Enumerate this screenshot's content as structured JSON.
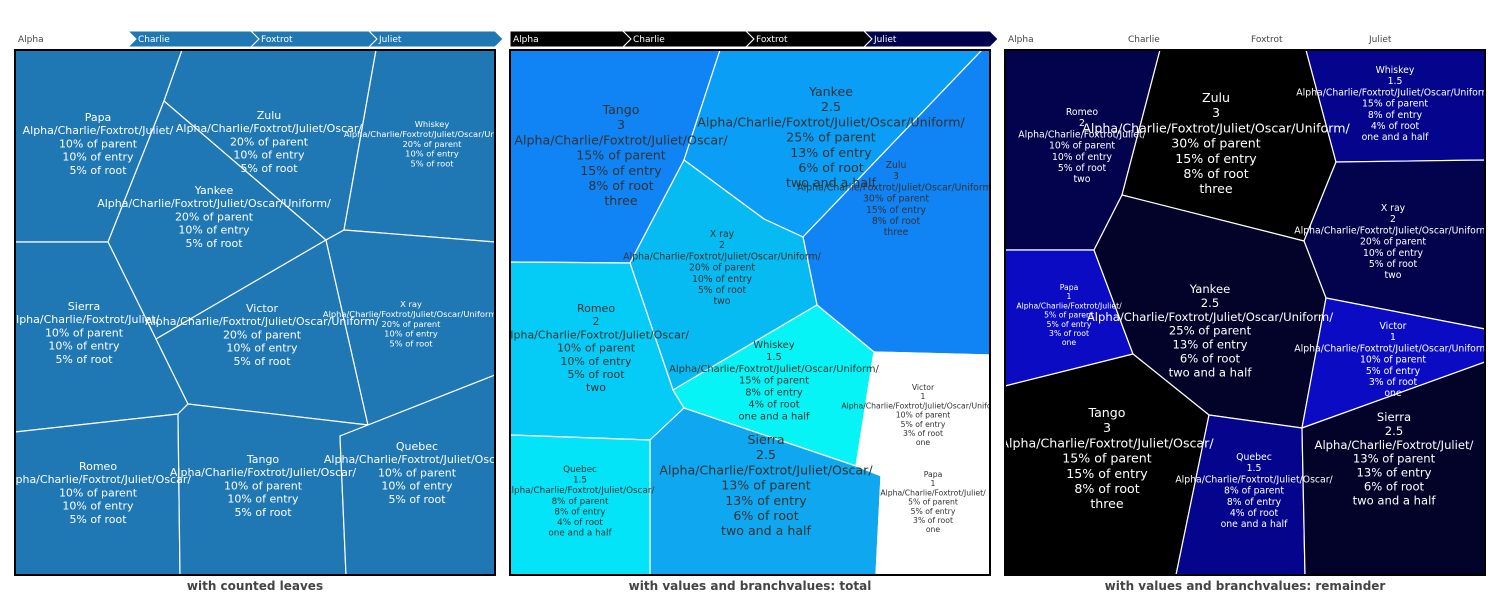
{
  "chart_data": [
    {
      "type": "voronoi-treemap",
      "title": "with counted leaves",
      "pathbar": [
        "Alpha",
        "Charlie",
        "Foxtrot",
        "Juliet"
      ],
      "cells": [
        {
          "label": "Papa",
          "path": "Alpha/Charlie/Foxtrot/Juliet/",
          "lines": [
            "10% of parent",
            "10% of entry",
            "5% of root"
          ]
        },
        {
          "label": "Zulu",
          "path": "Alpha/Charlie/Foxtrot/Juliet/Oscar/",
          "lines": [
            "20% of parent",
            "10% of entry",
            "5% of root"
          ]
        },
        {
          "label": "Whiskey",
          "path": "Alpha/Charlie/Foxtrot/Juliet/Oscar/Uniform/",
          "lines": [
            "20% of parent",
            "10% of entry",
            "5% of root"
          ]
        },
        {
          "label": "Yankee",
          "path": "Alpha/Charlie/Foxtrot/Juliet/Oscar/Uniform/",
          "lines": [
            "20% of parent",
            "10% of entry",
            "5% of root"
          ]
        },
        {
          "label": "Sierra",
          "path": "Alpha/Charlie/Foxtrot/Juliet/",
          "lines": [
            "10% of parent",
            "10% of entry",
            "5% of root"
          ]
        },
        {
          "label": "Victor",
          "path": "Alpha/Charlie/Foxtrot/Juliet/Oscar/Uniform/",
          "lines": [
            "20% of parent",
            "10% of entry",
            "5% of root"
          ]
        },
        {
          "label": "X ray",
          "path": "Alpha/Charlie/Foxtrot/Juliet/Oscar/Uniform/",
          "lines": [
            "20% of parent",
            "10% of entry",
            "5% of root"
          ]
        },
        {
          "label": "Romeo",
          "path": "Alpha/Charlie/Foxtrot/Juliet/Oscar/",
          "lines": [
            "10% of parent",
            "10% of entry",
            "5% of root"
          ]
        },
        {
          "label": "Tango",
          "path": "Alpha/Charlie/Foxtrot/Juliet/Oscar/",
          "lines": [
            "10% of parent",
            "10% of entry",
            "5% of root"
          ]
        },
        {
          "label": "Quebec",
          "path": "Alpha/Charlie/Foxtrot/Juliet/Oscar/",
          "lines": [
            "10% of parent",
            "10% of entry",
            "5% of root"
          ]
        }
      ]
    },
    {
      "type": "voronoi-treemap",
      "title": "with values and branchvalues: total",
      "pathbar": [
        "Alpha",
        "Charlie",
        "Foxtrot",
        "Juliet"
      ],
      "cells": [
        {
          "label": "Tango",
          "value": "3",
          "path": "Alpha/Charlie/Foxtrot/Juliet/Oscar/",
          "lines": [
            "15% of parent",
            "15% of entry",
            "8% of root",
            "three"
          ],
          "color": "#1184f5"
        },
        {
          "label": "Yankee",
          "value": "2.5",
          "path": "Alpha/Charlie/Foxtrot/Juliet/Oscar/Uniform/",
          "lines": [
            "25% of parent",
            "13% of entry",
            "6% of root",
            "two and a half"
          ],
          "color": "#0a9ef6"
        },
        {
          "label": "Zulu",
          "value": "3",
          "path": "Alpha/Charlie/Foxtrot/Juliet/Oscar/Uniform/",
          "lines": [
            "30% of parent",
            "15% of entry",
            "8% of root",
            "three"
          ],
          "color": "#1184f5"
        },
        {
          "label": "X ray",
          "value": "2",
          "path": "Alpha/Charlie/Foxtrot/Juliet/Oscar/Uniform/",
          "lines": [
            "20% of parent",
            "10% of entry",
            "5% of root",
            "two"
          ],
          "color": "#06bbf2"
        },
        {
          "label": "Romeo",
          "value": "2",
          "path": "Alpha/Charlie/Foxtrot/Juliet/Oscar/",
          "lines": [
            "10% of parent",
            "10% of entry",
            "5% of root",
            "two"
          ],
          "color": "#05ccf7"
        },
        {
          "label": "Whiskey",
          "value": "1.5",
          "path": "Alpha/Charlie/Foxtrot/Juliet/Oscar/Uniform/",
          "lines": [
            "15% of parent",
            "8% of entry",
            "4% of root",
            "one and a half"
          ],
          "color": "#06f4f6"
        },
        {
          "label": "Victor",
          "value": "1",
          "path": "Alpha/Charlie/Foxtrot/Juliet/Oscar/Uniform/",
          "lines": [
            "10% of parent",
            "5% of entry",
            "3% of root",
            "one"
          ],
          "color": "#ffffff"
        },
        {
          "label": "Sierra",
          "value": "2.5",
          "path": "Alpha/Charlie/Foxtrot/Juliet/Oscar/",
          "lines": [
            "13% of parent",
            "13% of entry",
            "6% of root",
            "two and a half"
          ],
          "color": "#0fa7ef"
        },
        {
          "label": "Quebec",
          "value": "1.5",
          "path": "Alpha/Charlie/Foxtrot/Juliet/Oscar/",
          "lines": [
            "8% of parent",
            "8% of entry",
            "4% of root",
            "one and a half"
          ],
          "color": "#03e4f8"
        },
        {
          "label": "Papa",
          "value": "1",
          "path": "Alpha/Charlie/Foxtrot/Juliet/",
          "lines": [
            "5% of parent",
            "5% of entry",
            "3% of root",
            "one"
          ],
          "color": "#ffffff"
        }
      ]
    },
    {
      "type": "voronoi-treemap",
      "title": "with values and branchvalues: remainder",
      "pathbar": [
        "Alpha",
        "Charlie",
        "Foxtrot",
        "Juliet"
      ],
      "cells": [
        {
          "label": "Romeo",
          "value": "2",
          "path": "Alpha/Charlie/Foxtrot/Juliet/",
          "lines": [
            "10% of parent",
            "10% of entry",
            "5% of root",
            "two"
          ],
          "color": "#03034d"
        },
        {
          "label": "Zulu",
          "value": "3",
          "path": "Alpha/Charlie/Foxtrot/Juliet/Oscar/Uniform/",
          "lines": [
            "30% of parent",
            "15% of entry",
            "8% of root",
            "three"
          ],
          "color": "#000000"
        },
        {
          "label": "Whiskey",
          "value": "1.5",
          "path": "Alpha/Charlie/Foxtrot/Juliet/Oscar/Uniform/",
          "lines": [
            "15% of parent",
            "8% of entry",
            "4% of root",
            "one and a half"
          ],
          "color": "#04048c"
        },
        {
          "label": "X ray",
          "value": "2",
          "path": "Alpha/Charlie/Foxtrot/Juliet/Oscar/Uniform/",
          "lines": [
            "20% of parent",
            "10% of entry",
            "5% of root",
            "two"
          ],
          "color": "#03034d"
        },
        {
          "label": "Papa",
          "value": "1",
          "path": "Alpha/Charlie/Foxtrot/Juliet/",
          "lines": [
            "5% of parent",
            "5% of entry",
            "3% of root",
            "one"
          ],
          "color": "#0b0bc4"
        },
        {
          "label": "Yankee",
          "value": "2.5",
          "path": "Alpha/Charlie/Foxtrot/Juliet/Oscar/Uniform/",
          "lines": [
            "25% of parent",
            "13% of entry",
            "6% of root",
            "two and a half"
          ],
          "color": "#030329"
        },
        {
          "label": "Victor",
          "value": "1",
          "path": "Alpha/Charlie/Foxtrot/Juliet/Oscar/Uniform/",
          "lines": [
            "10% of parent",
            "5% of entry",
            "3% of root",
            "one"
          ],
          "color": "#0b0bc4"
        },
        {
          "label": "Tango",
          "value": "3",
          "path": "Alpha/Charlie/Foxtrot/Juliet/Oscar/",
          "lines": [
            "15% of parent",
            "15% of entry",
            "8% of root",
            "three"
          ],
          "color": "#000000"
        },
        {
          "label": "Quebec",
          "value": "1.5",
          "path": "Alpha/Charlie/Foxtrot/Juliet/Oscar/",
          "lines": [
            "8% of parent",
            "8% of entry",
            "4% of root",
            "one and a half"
          ],
          "color": "#04048c"
        },
        {
          "label": "Sierra",
          "value": "2.5",
          "path": "Alpha/Charlie/Foxtrot/Juliet/",
          "lines": [
            "13% of parent",
            "13% of entry",
            "6% of root",
            "two and a half"
          ],
          "color": "#030329"
        }
      ]
    }
  ],
  "colors": {
    "panel1_fill": "#1f77b4",
    "panel1_crumb": "#1f77b4",
    "panel2_crumb": "#000000",
    "panel2_crumb_dark": "#00004d",
    "border": "#000000",
    "cell_line": "#ffffff",
    "title": "#444444"
  }
}
